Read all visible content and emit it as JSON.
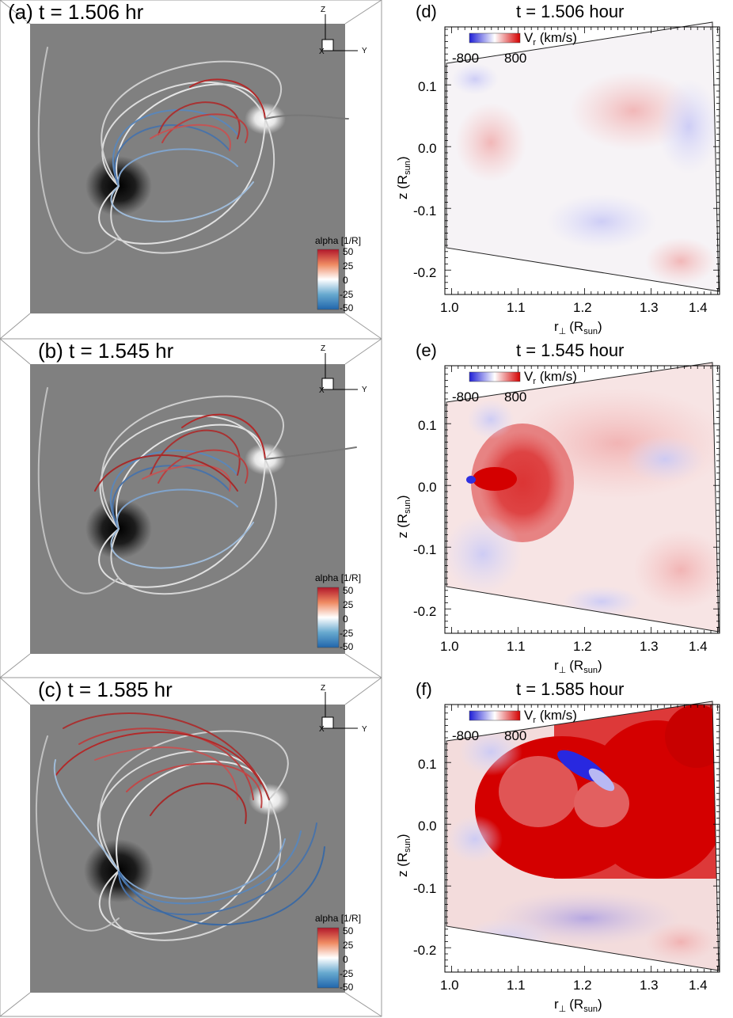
{
  "left_panels": [
    {
      "label": "(a) t = 1.506 hr",
      "axes": {
        "z": "Z",
        "x": "X",
        "y": "Y"
      },
      "colorbar": {
        "title": "alpha [1/R]",
        "ticks": [
          "50",
          "25",
          "0",
          "-25",
          "-50"
        ],
        "colors": [
          "#b2182b",
          "#ef8a62",
          "#ffffff",
          "#67a9cf",
          "#2166ac"
        ]
      }
    },
    {
      "label": "(b) t = 1.545 hr",
      "axes": {
        "z": "Z",
        "x": "X",
        "y": "Y"
      },
      "colorbar": {
        "title": "alpha [1/R]",
        "ticks": [
          "50",
          "25",
          "0",
          "-25",
          "-50"
        ],
        "colors": [
          "#b2182b",
          "#ef8a62",
          "#ffffff",
          "#67a9cf",
          "#2166ac"
        ]
      }
    },
    {
      "label": "(c) t = 1.585 hr",
      "axes": {
        "z": "Z",
        "x": "X",
        "y": "Y"
      },
      "colorbar": {
        "title": "alpha [1/R]",
        "ticks": [
          "50",
          "25",
          "0",
          "-25",
          "-50"
        ],
        "colors": [
          "#b2182b",
          "#ef8a62",
          "#ffffff",
          "#67a9cf",
          "#2166ac"
        ]
      }
    }
  ],
  "right_panels": [
    {
      "label": "(d)",
      "title": "t = 1.506 hour",
      "colorbar": {
        "title": "V",
        "sub": "r",
        "unit": " (km/s)",
        "min": "-800",
        "max": "800",
        "colors": [
          "#1f1fd6",
          "#ffffff",
          "#d40000"
        ]
      },
      "xlabel": "r",
      "xlabel_sub": "⊥",
      "xlabel_unit": "(R",
      "xlabel_unit_sub": "sun",
      "xlabel_close": ")",
      "ylabel": "z (R",
      "ylabel_sub": "sun",
      "ylabel_close": ")",
      "xticks": [
        "1.0",
        "1.1",
        "1.2",
        "1.3",
        "1.4"
      ],
      "yticks": [
        "0.1",
        "0.0",
        "-0.1",
        "-0.2"
      ]
    },
    {
      "label": "(e)",
      "title": "t = 1.545 hour",
      "colorbar": {
        "title": "V",
        "sub": "r",
        "unit": " (km/s)",
        "min": "-800",
        "max": "800",
        "colors": [
          "#1f1fd6",
          "#ffffff",
          "#d40000"
        ]
      },
      "xlabel": "r",
      "xlabel_sub": "⊥",
      "xlabel_unit": "(R",
      "xlabel_unit_sub": "sun",
      "xlabel_close": ")",
      "ylabel": "z (R",
      "ylabel_sub": "sun",
      "ylabel_close": ")",
      "xticks": [
        "1.0",
        "1.1",
        "1.2",
        "1.3",
        "1.4"
      ],
      "yticks": [
        "0.1",
        "0.0",
        "-0.1",
        "-0.2"
      ]
    },
    {
      "label": "(f)",
      "title": "t = 1.585 hour",
      "colorbar": {
        "title": "V",
        "sub": "r",
        "unit": " (km/s)",
        "min": "-800",
        "max": "800",
        "colors": [
          "#1f1fd6",
          "#ffffff",
          "#d40000"
        ]
      },
      "xlabel": "r",
      "xlabel_sub": "⊥",
      "xlabel_unit": "(R",
      "xlabel_unit_sub": "sun",
      "xlabel_close": ")",
      "ylabel": "z (R",
      "ylabel_sub": "sun",
      "ylabel_close": ")",
      "xticks": [
        "1.0",
        "1.1",
        "1.2",
        "1.3",
        "1.4"
      ],
      "yticks": [
        "0.1",
        "0.0",
        "-0.1",
        "-0.2"
      ]
    }
  ]
}
